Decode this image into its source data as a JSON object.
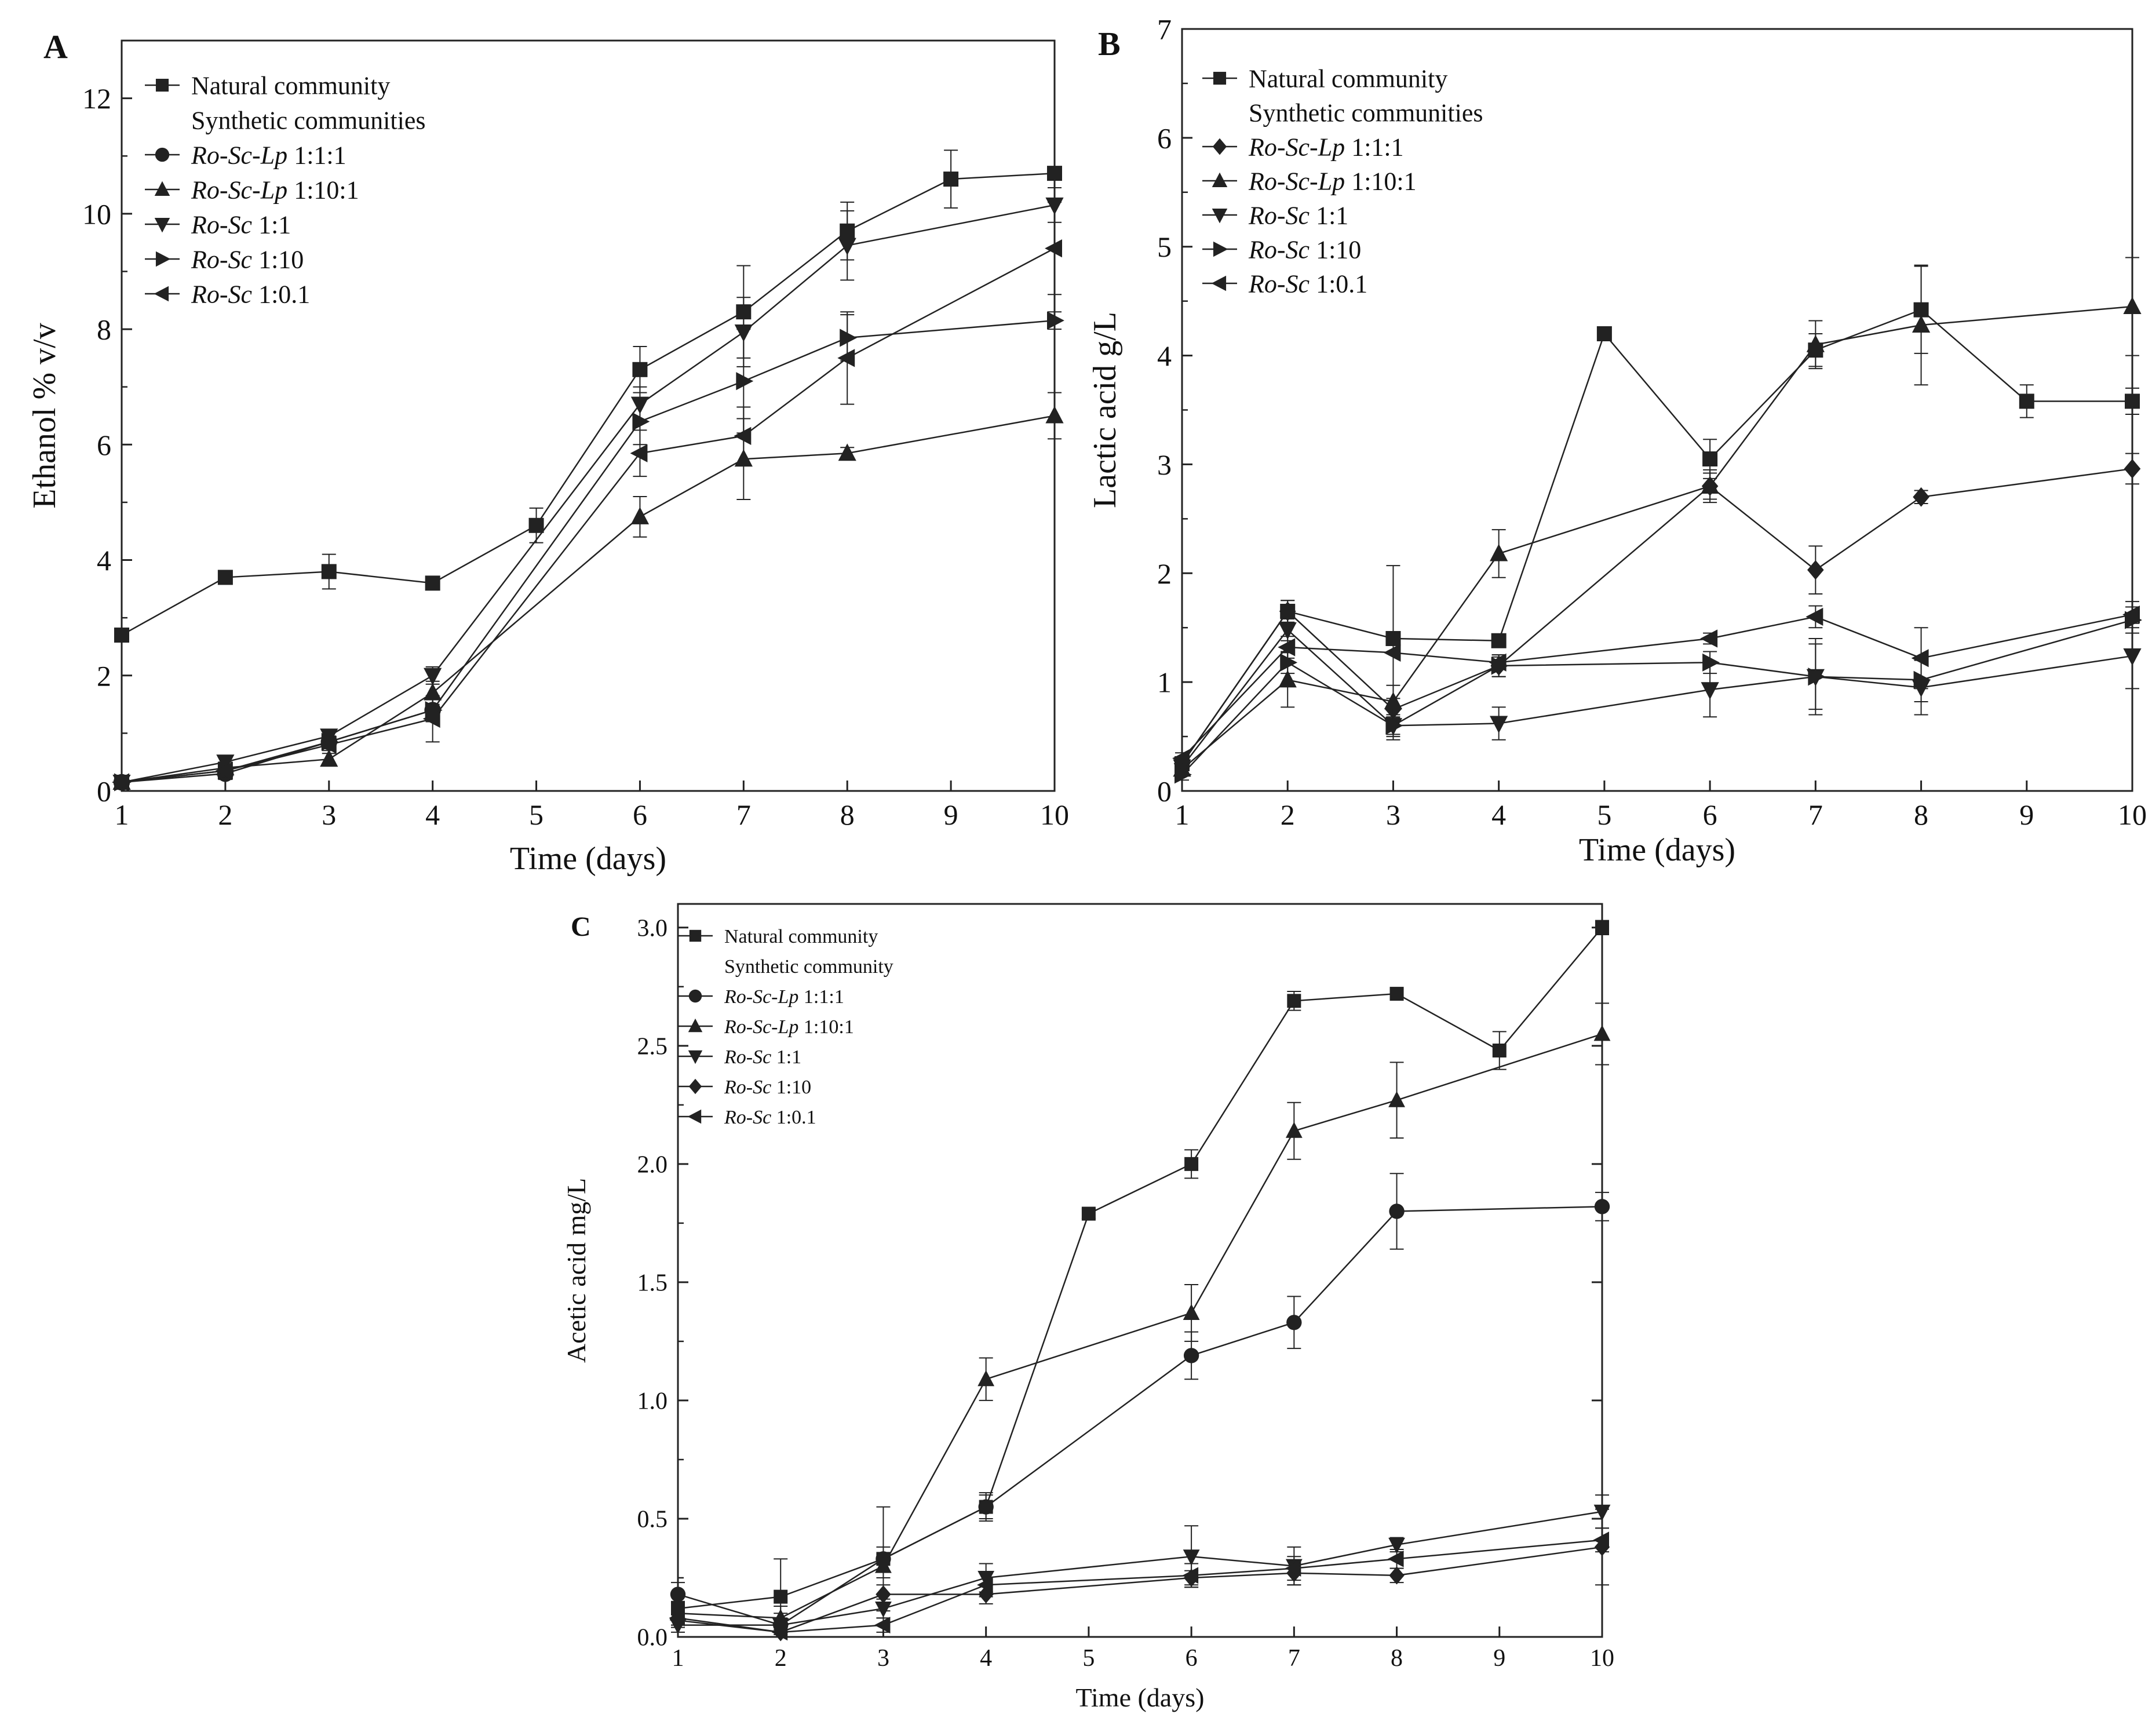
{
  "figure": {
    "line_color": "#222222",
    "background": "#ffffff"
  },
  "chart_data": [
    {
      "panel": "A",
      "type": "line",
      "title": "",
      "xlabel": "Time (days)",
      "ylabel": "Ethanol % v/v",
      "xlim": [
        1,
        10
      ],
      "ylim": [
        0,
        13
      ],
      "x_ticks": [
        1,
        2,
        3,
        4,
        5,
        6,
        7,
        8,
        9,
        10
      ],
      "y_ticks": [
        0,
        2,
        4,
        6,
        8,
        10,
        12
      ],
      "legend_header": "Synthetic communities",
      "legend_placement": "top-left",
      "series": [
        {
          "name": "Natural community",
          "italic": "",
          "ratio": "",
          "marker": "square",
          "x": [
            1,
            2,
            3,
            4,
            5,
            6,
            7,
            8,
            9,
            10
          ],
          "y": [
            2.7,
            3.7,
            3.8,
            3.6,
            4.6,
            7.3,
            8.3,
            9.7,
            10.6,
            10.7
          ],
          "err": [
            0.1,
            0.1,
            0.3,
            0.1,
            0.3,
            0.4,
            0.8,
            0.5,
            0.5,
            0.1
          ]
        },
        {
          "name": "Ro-Sc-Lp 1:1:1",
          "italic": "Ro-Sc-Lp",
          "ratio": " 1:1:1",
          "marker": "circle",
          "x": [
            1,
            2,
            3,
            4
          ],
          "y": [
            0.15,
            0.3,
            0.85,
            1.4
          ],
          "err": [
            0.05,
            0.1,
            0.1,
            0.2
          ]
        },
        {
          "name": "Ro-Sc-Lp 1:10:1",
          "italic": "Ro-Sc-Lp",
          "ratio": " 1:10:1",
          "marker": "triangle-up",
          "x": [
            1,
            2,
            3,
            4,
            6,
            7,
            8,
            10
          ],
          "y": [
            0.15,
            0.4,
            0.55,
            1.7,
            4.75,
            5.75,
            5.85,
            6.5
          ],
          "err": [
            0.05,
            0.1,
            0.1,
            0.2,
            0.35,
            0.7,
            0.1,
            0.4
          ]
        },
        {
          "name": "Ro-Sc 1:1",
          "italic": "Ro-Sc",
          "ratio": " 1:1",
          "marker": "triangle-down",
          "x": [
            1,
            2,
            3,
            4,
            6,
            7,
            8,
            10
          ],
          "y": [
            0.15,
            0.5,
            0.95,
            2.0,
            6.7,
            7.95,
            9.45,
            10.15
          ],
          "err": [
            0.05,
            0.1,
            0.1,
            0.15,
            0.3,
            0.6,
            0.6,
            0.3
          ]
        },
        {
          "name": "Ro-Sc 1:10",
          "italic": "Ro-Sc",
          "ratio": " 1:10",
          "marker": "triangle-right",
          "x": [
            1,
            2,
            3,
            4,
            6,
            7,
            8,
            10
          ],
          "y": [
            0.15,
            0.35,
            0.85,
            1.4,
            6.4,
            7.1,
            7.85,
            8.15
          ],
          "err": [
            0.05,
            0.1,
            0.1,
            0.2,
            0.4,
            0.9,
            0.4,
            0.15
          ]
        },
        {
          "name": "Ro-Sc 1:0.1",
          "italic": "Ro-Sc",
          "ratio": " 1:0.1",
          "marker": "triangle-left",
          "x": [
            1,
            2,
            3,
            4,
            6,
            7,
            8,
            10
          ],
          "y": [
            0.15,
            0.35,
            0.8,
            1.25,
            5.85,
            6.15,
            7.5,
            9.4
          ],
          "err": [
            0.05,
            0.1,
            0.1,
            0.4,
            0.4,
            0.5,
            0.8,
            0.8
          ]
        }
      ]
    },
    {
      "panel": "B",
      "type": "line",
      "title": "",
      "xlabel": "Time (days)",
      "ylabel": "Lactic acid g/L",
      "xlim": [
        1,
        10
      ],
      "ylim": [
        0,
        7
      ],
      "x_ticks": [
        1,
        2,
        3,
        4,
        5,
        6,
        7,
        8,
        9,
        10
      ],
      "y_ticks": [
        0,
        1,
        2,
        3,
        4,
        5,
        6,
        7
      ],
      "legend_header": "Synthetic communities",
      "legend_placement": "top-left",
      "series": [
        {
          "name": "Natural community",
          "italic": "",
          "ratio": "",
          "marker": "square",
          "x": [
            1,
            2,
            3,
            4,
            5,
            6,
            7,
            8,
            9,
            10
          ],
          "y": [
            0.25,
            1.65,
            1.4,
            1.38,
            4.2,
            3.05,
            4.05,
            4.42,
            3.58,
            3.58
          ],
          "err": [
            0.05,
            0.1,
            0.05,
            0.05,
            0.03,
            0.18,
            0.15,
            0.4,
            0.15,
            0.12
          ]
        },
        {
          "name": "Ro-Sc-Lp 1:1:1",
          "italic": "Ro-Sc-Lp",
          "ratio": " 1:1:1",
          "marker": "diamond",
          "x": [
            1,
            2,
            3,
            4,
            6,
            7,
            8,
            10
          ],
          "y": [
            0.25,
            1.65,
            0.75,
            1.15,
            2.8,
            2.03,
            2.7,
            2.96
          ],
          "err": [
            0.05,
            0.1,
            0.1,
            0.1,
            0.15,
            0.22,
            0.06,
            0.14
          ]
        },
        {
          "name": "Ro-Sc-Lp 1:10:1",
          "italic": "Ro-Sc-Lp",
          "ratio": " 1:10:1",
          "marker": "triangle-up",
          "x": [
            1,
            2,
            3,
            4,
            6,
            7,
            8,
            10
          ],
          "y": [
            0.2,
            1.02,
            0.82,
            2.18,
            2.8,
            4.1,
            4.28,
            4.45
          ],
          "err": [
            0.05,
            0.25,
            0.15,
            0.22,
            0.12,
            0.22,
            0.55,
            0.45
          ]
        },
        {
          "name": "Ro-Sc 1:1",
          "italic": "Ro-Sc",
          "ratio": " 1:1",
          "marker": "triangle-down",
          "x": [
            1,
            2,
            3,
            4,
            6,
            7,
            8,
            10
          ],
          "y": [
            0.22,
            1.48,
            0.6,
            0.62,
            0.93,
            1.05,
            0.95,
            1.24
          ],
          "err": [
            0.05,
            0.1,
            0.08,
            0.15,
            0.25,
            0.3,
            0.25,
            0.3
          ]
        },
        {
          "name": "Ro-Sc 1:10",
          "italic": "Ro-Sc",
          "ratio": " 1:10",
          "marker": "triangle-right",
          "x": [
            1,
            2,
            3,
            4,
            6,
            7,
            8,
            10
          ],
          "y": [
            0.15,
            1.18,
            0.6,
            1.15,
            1.18,
            1.05,
            1.02,
            1.57
          ],
          "err": [
            0.05,
            0.1,
            0.1,
            0.1,
            0.1,
            0.35,
            0.2,
            0.12
          ]
        },
        {
          "name": "Ro-Sc 1:0.1",
          "italic": "Ro-Sc",
          "ratio": " 1:0.1",
          "marker": "triangle-left",
          "x": [
            1,
            2,
            3,
            4,
            6,
            7,
            8,
            10
          ],
          "y": [
            0.3,
            1.32,
            1.27,
            1.18,
            1.4,
            1.6,
            1.22,
            1.62
          ],
          "err": [
            0.05,
            0.1,
            0.8,
            0.05,
            0.05,
            0.1,
            0.28,
            0.12
          ]
        }
      ]
    },
    {
      "panel": "C",
      "type": "line",
      "title": "",
      "xlabel": "Time (days)",
      "ylabel": "Acetic acid mg/L",
      "xlim": [
        1,
        10
      ],
      "ylim": [
        0,
        3.1
      ],
      "x_ticks": [
        1,
        2,
        3,
        4,
        5,
        6,
        7,
        8,
        9,
        10
      ],
      "y_ticks": [
        0.0,
        0.5,
        1.0,
        1.5,
        2.0,
        2.5,
        3.0
      ],
      "legend_header": "Synthetic community",
      "legend_placement": "top-left",
      "series": [
        {
          "name": "Natural community",
          "italic": "",
          "ratio": "",
          "marker": "square",
          "x": [
            1,
            2,
            3,
            4,
            5,
            6,
            7,
            8,
            9,
            10
          ],
          "y": [
            0.12,
            0.17,
            0.33,
            0.55,
            1.79,
            2.0,
            2.69,
            2.72,
            2.48,
            3.0
          ],
          "err": [
            0.05,
            0.16,
            0.22,
            0.05,
            0.02,
            0.06,
            0.04,
            0.02,
            0.08,
            0.03
          ]
        },
        {
          "name": "Ro-Sc-Lp 1:1:1",
          "italic": "Ro-Sc-Lp",
          "ratio": " 1:1:1",
          "marker": "circle",
          "x": [
            1,
            2,
            3,
            4,
            6,
            7,
            8,
            10
          ],
          "y": [
            0.18,
            0.05,
            0.33,
            0.55,
            1.19,
            1.33,
            1.8,
            1.82
          ],
          "err": [
            0.05,
            0.05,
            0.05,
            0.06,
            0.1,
            0.11,
            0.16,
            0.06
          ]
        },
        {
          "name": "Ro-Sc-Lp 1:10:1",
          "italic": "Ro-Sc-Lp",
          "ratio": " 1:10:1",
          "marker": "triangle-up",
          "x": [
            1,
            2,
            3,
            4,
            6,
            7,
            8,
            10
          ],
          "y": [
            0.1,
            0.08,
            0.3,
            1.09,
            1.37,
            2.14,
            2.27,
            2.55
          ],
          "err": [
            0.05,
            0.05,
            0.05,
            0.09,
            0.12,
            0.12,
            0.16,
            0.13
          ]
        },
        {
          "name": "Ro-Sc 1:1",
          "italic": "Ro-Sc",
          "ratio": " 1:1",
          "marker": "triangle-down",
          "x": [
            1,
            2,
            3,
            4,
            6,
            7,
            8,
            10
          ],
          "y": [
            0.05,
            0.05,
            0.12,
            0.25,
            0.34,
            0.3,
            0.39,
            0.53
          ],
          "err": [
            0.03,
            0.03,
            0.04,
            0.06,
            0.13,
            0.08,
            0.03,
            0.07
          ]
        },
        {
          "name": "Ro-Sc 1:10",
          "italic": "Ro-Sc",
          "ratio": " 1:10",
          "marker": "diamond",
          "x": [
            1,
            2,
            3,
            4,
            6,
            7,
            8,
            10
          ],
          "y": [
            0.07,
            0.02,
            0.18,
            0.18,
            0.25,
            0.27,
            0.26,
            0.38
          ],
          "err": [
            0.03,
            0.02,
            0.04,
            0.04,
            0.03,
            0.05,
            0.03,
            0.16
          ]
        },
        {
          "name": "Ro-Sc 1:0.1",
          "italic": "Ro-Sc",
          "ratio": " 1:0.1",
          "marker": "triangle-left",
          "x": [
            1,
            2,
            3,
            4,
            6,
            7,
            8,
            10
          ],
          "y": [
            0.08,
            0.02,
            0.05,
            0.22,
            0.26,
            0.29,
            0.33,
            0.41
          ],
          "err": [
            0.03,
            0.02,
            0.03,
            0.05,
            0.05,
            0.05,
            0.04,
            0.05
          ]
        }
      ]
    }
  ]
}
